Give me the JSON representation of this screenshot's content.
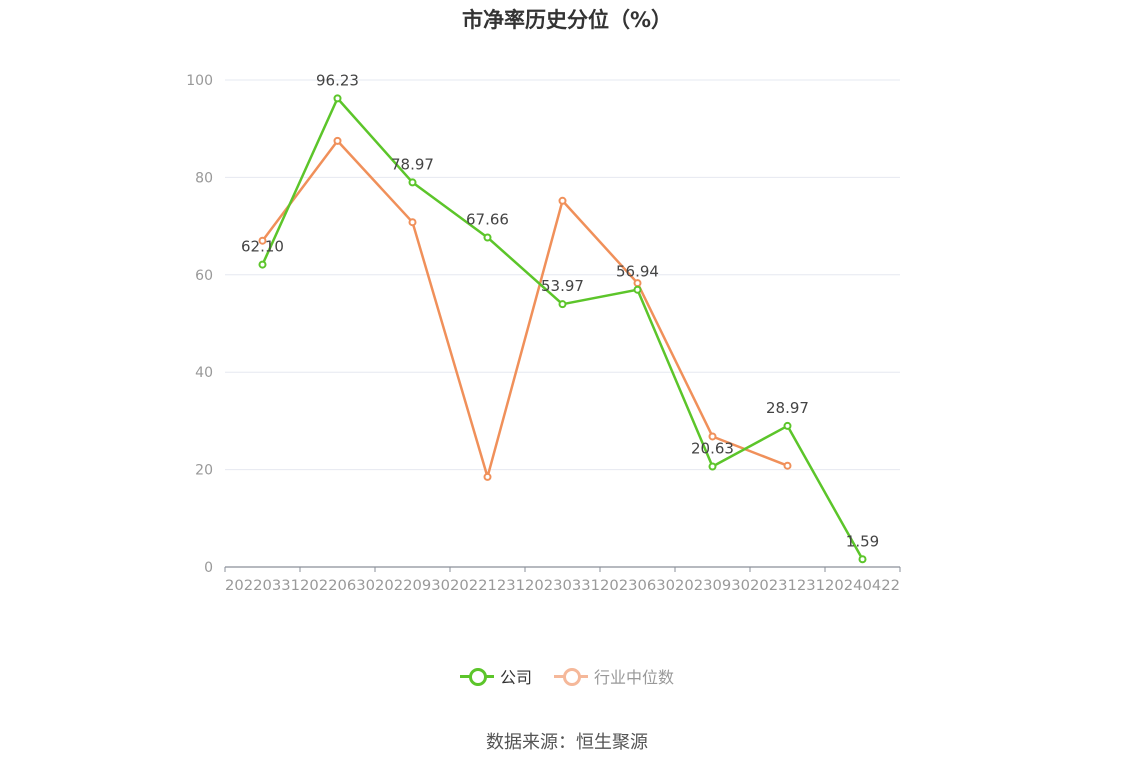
{
  "chart_data": {
    "type": "line",
    "title": "市净率历史分位（%）",
    "categories": [
      "20220331",
      "20220630",
      "20220930",
      "20221231",
      "20230331",
      "20230630",
      "20230930",
      "20231231",
      "20240422"
    ],
    "series": [
      {
        "name": "公司",
        "color": "#5cc52a",
        "values": [
          62.1,
          96.23,
          78.97,
          67.66,
          53.97,
          56.94,
          20.63,
          28.97,
          1.59
        ],
        "labels": [
          "62.10",
          "96.23",
          "78.97",
          "67.66",
          "53.97",
          "56.94",
          "20.63",
          "28.97",
          "1.59"
        ]
      },
      {
        "name": "行业中位数",
        "color": "#f0905a",
        "legend_color": "#f5b89a",
        "values": [
          67,
          87.5,
          70.8,
          18.5,
          75.2,
          58.3,
          26.8,
          20.8,
          null
        ]
      }
    ],
    "y_ticks": [
      "0",
      "20",
      "40",
      "60",
      "80",
      "100"
    ],
    "ylim": [
      0,
      100
    ],
    "grid": true,
    "legend_position": "bottom"
  },
  "footer": {
    "source": "数据来源：恒生聚源"
  }
}
